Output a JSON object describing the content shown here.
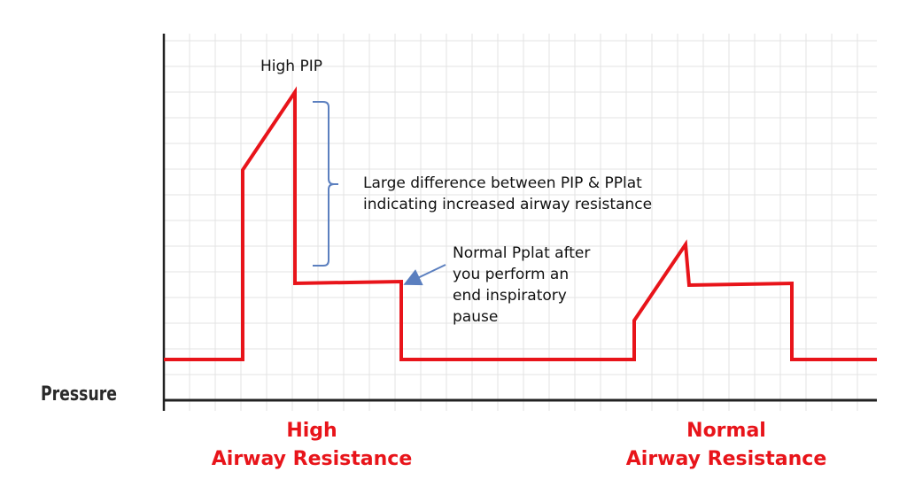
{
  "labels": {
    "y_axis": "Pressure",
    "high_pip": "High PIP",
    "difference_line1": "Large difference between PIP & PPlat",
    "difference_line2": "indicating increased airway resistance",
    "pplat_line1": "Normal Pplat after",
    "pplat_line2": "you perform an",
    "pplat_line3": "end inspiratory",
    "pplat_line4": "pause",
    "high_line1": "High",
    "high_line2": "Airway Resistance",
    "normal_line1": "Normal",
    "normal_line2": "Airway Resistance"
  },
  "colors": {
    "waveform": "#e8141a",
    "bracket": "#5b7fbf",
    "arrow": "#5b7fbf",
    "grid": "#e3e3e3",
    "axis": "#222222"
  }
}
